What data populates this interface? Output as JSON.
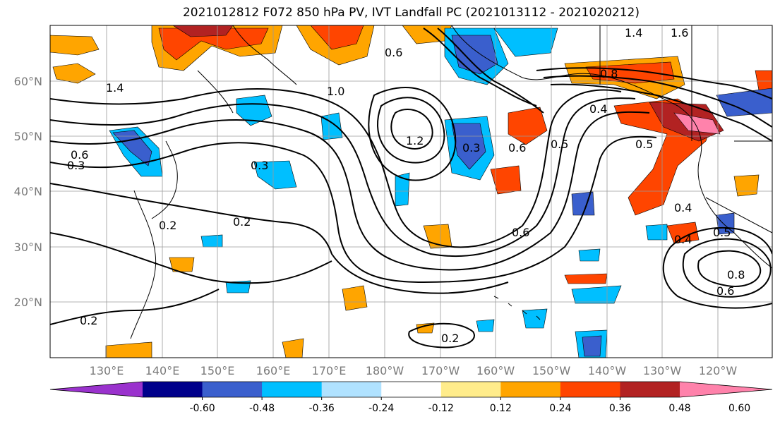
{
  "title": "2021012812 F072 850 hPa PV, IVT Landfall PC (2021013112 - 2021020212)",
  "lat_labels": [
    "60°N",
    "50°N",
    "40°N",
    "30°N",
    "20°N"
  ],
  "lon_labels": [
    "130°E",
    "140°E",
    "150°E",
    "160°E",
    "170°E",
    "180°W",
    "170°W",
    "160°W",
    "150°W",
    "140°W",
    "130°W",
    "120°W"
  ],
  "colorbar": {
    "colors": [
      "#9a32cd",
      "#00008b",
      "#3a5fcd",
      "#00bfff",
      "#b0e2ff",
      "#ffffff",
      "#ffec8b",
      "#ffa500",
      "#ff4500",
      "#b22222",
      "#ff82ab"
    ],
    "tick_labels": [
      "-0.60",
      "-0.48",
      "-0.36",
      "-0.24",
      "-0.12",
      "0.12",
      "0.24",
      "0.36",
      "0.48",
      "0.60"
    ]
  },
  "contour_labels": [
    "1.0",
    "1.2",
    "1.4",
    "0.8",
    "0.8",
    "0.6",
    "0.6",
    "0.6",
    "0.6",
    "0.5",
    "0.5",
    "0.5",
    "0.4",
    "0.4",
    "0.4",
    "0.3",
    "0.3",
    "0.2",
    "0.2",
    "0.2",
    "0.2",
    "0.3",
    "0.6",
    "1.6",
    "1.4"
  ]
}
